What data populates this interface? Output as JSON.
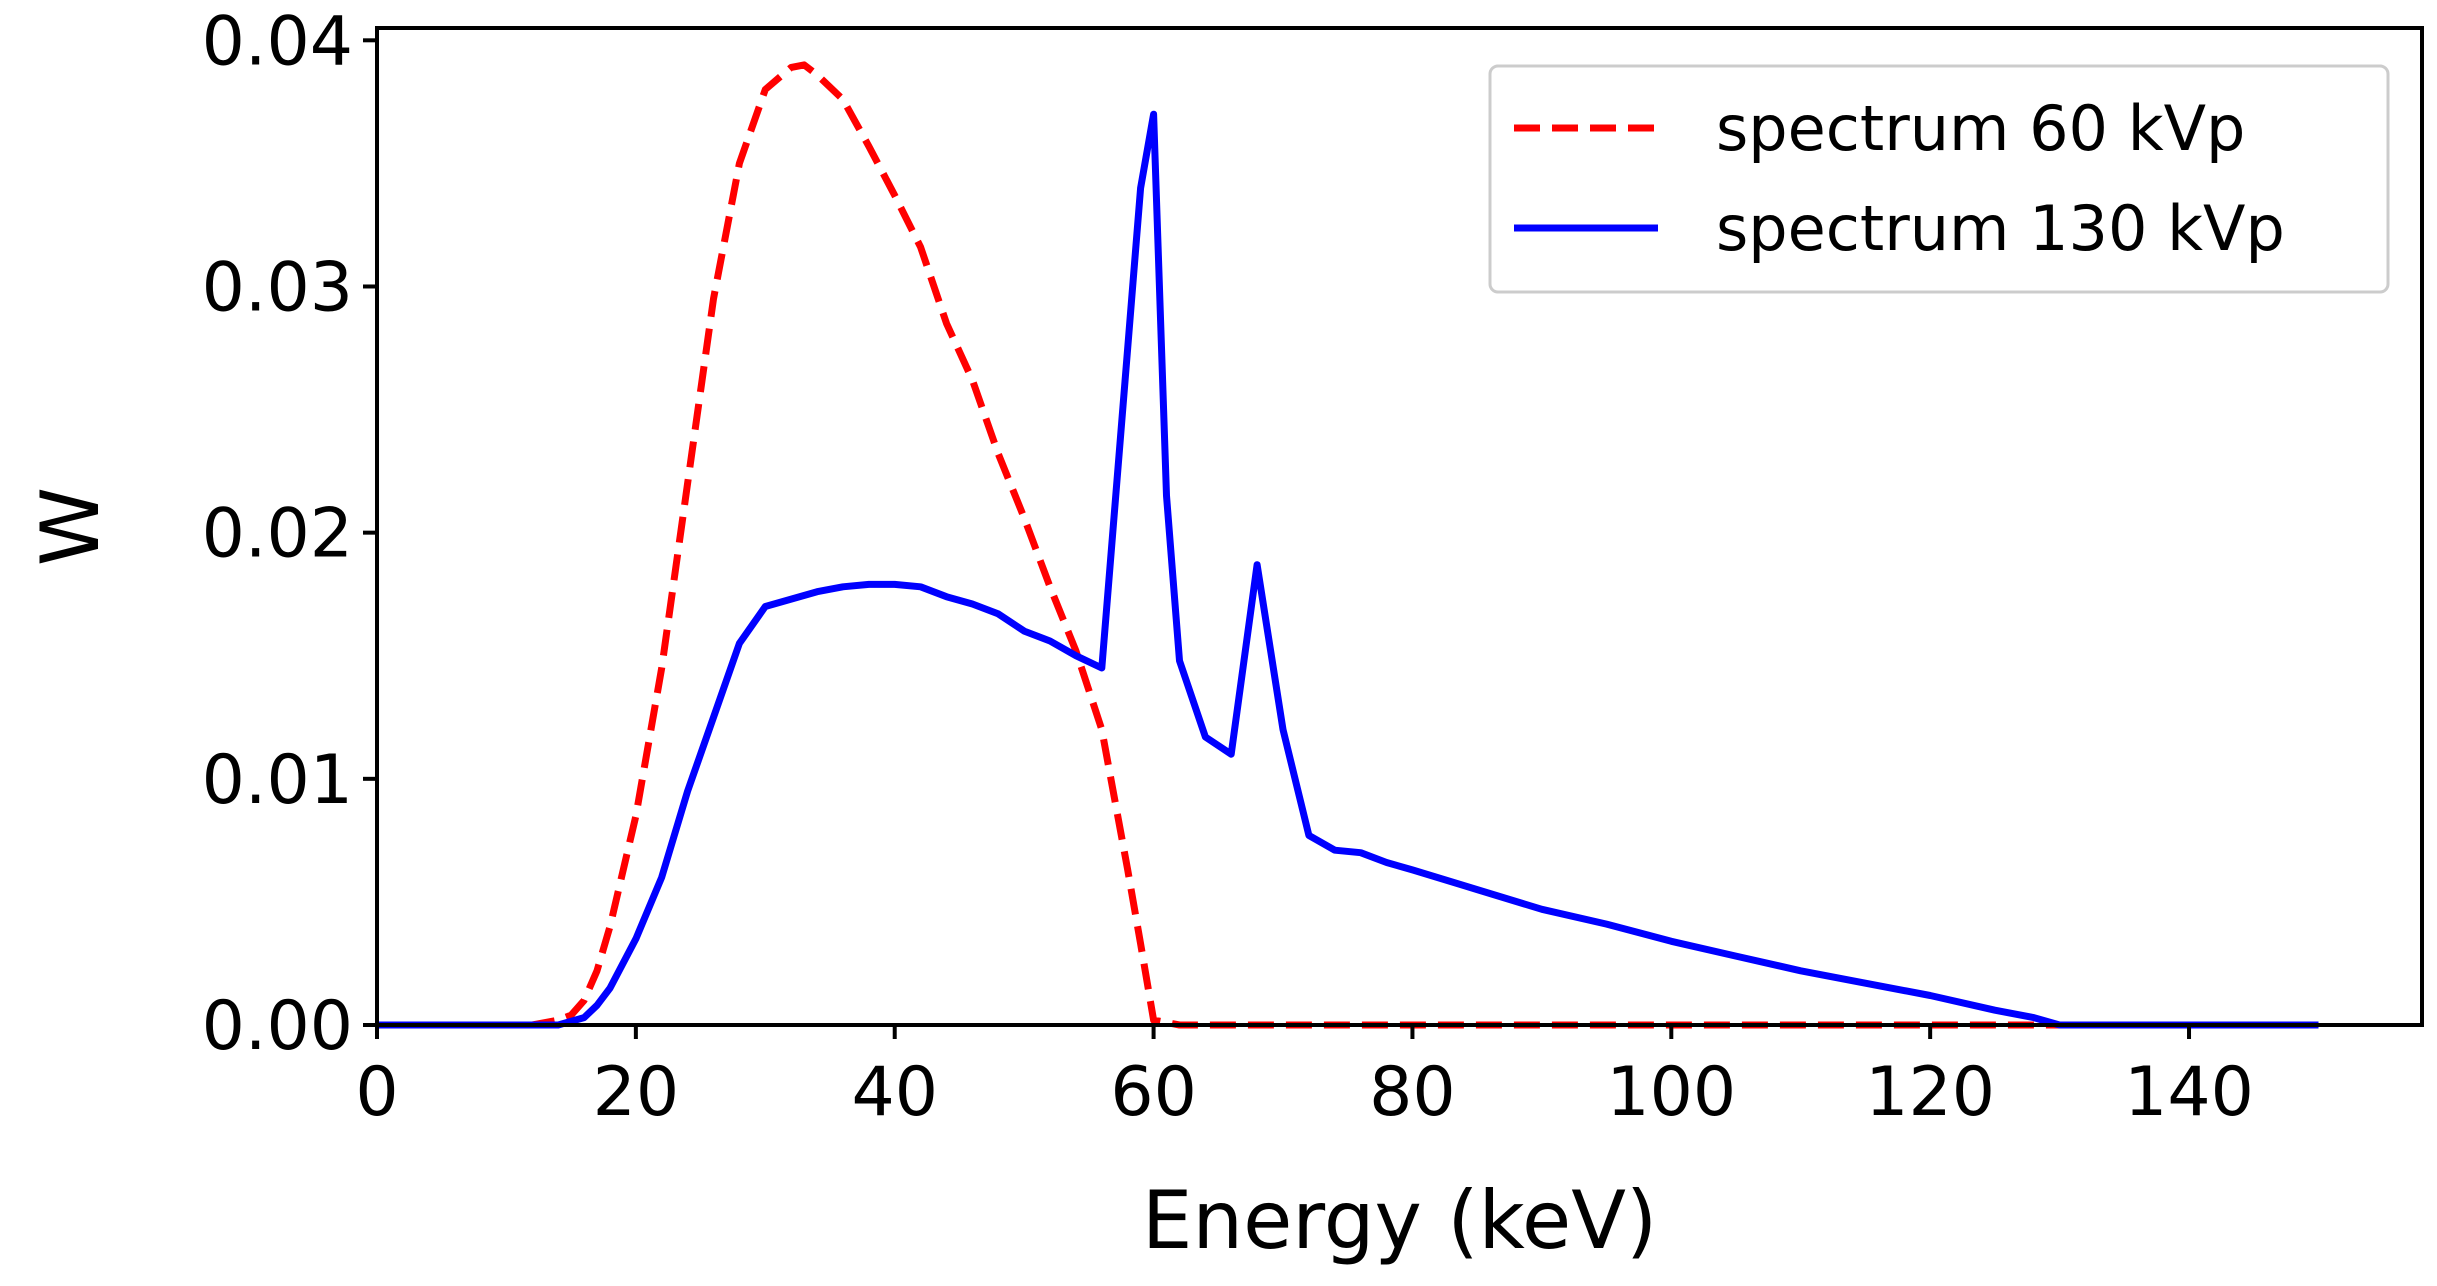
{
  "chart_data": {
    "type": "line",
    "title": "",
    "xlabel": "Energy (keV)",
    "ylabel": "W",
    "xlim": [
      0,
      158
    ],
    "ylim": [
      0,
      0.0405
    ],
    "xticks": [
      0,
      20,
      40,
      60,
      80,
      100,
      120,
      140
    ],
    "xtick_labels": [
      "0",
      "20",
      "40",
      "60",
      "80",
      "100",
      "120",
      "140"
    ],
    "yticks": [
      0,
      0.01,
      0.02,
      0.03,
      0.04
    ],
    "ytick_labels": [
      "0.00",
      "0.01",
      "0.02",
      "0.03",
      "0.04"
    ],
    "grid": false,
    "legend_position": "top-right",
    "series": [
      {
        "name": "spectrum 60 kVp",
        "color": "#ff0000",
        "style": "dashed",
        "x": [
          0,
          10,
          12,
          14,
          15,
          16,
          17,
          18,
          20,
          22,
          24,
          26,
          28,
          30,
          32,
          33,
          34,
          36,
          38,
          40,
          42,
          44,
          46,
          48,
          50,
          52,
          54,
          56,
          58,
          59,
          60,
          62,
          70,
          80,
          100,
          120,
          130,
          150
        ],
        "y": [
          0,
          0,
          0,
          0.0002,
          0.0004,
          0.001,
          0.0022,
          0.004,
          0.0085,
          0.0145,
          0.022,
          0.0295,
          0.035,
          0.038,
          0.0389,
          0.039,
          0.0386,
          0.0376,
          0.0357,
          0.0337,
          0.0316,
          0.0285,
          0.0262,
          0.0232,
          0.0206,
          0.0178,
          0.0152,
          0.012,
          0.0063,
          0.0033,
          0.0002,
          0,
          0,
          0,
          0,
          0,
          0,
          0
        ]
      },
      {
        "name": "spectrum 130 kVp",
        "color": "#0000ff",
        "style": "solid",
        "x": [
          0,
          10,
          14,
          16,
          17,
          18,
          20,
          22,
          24,
          26,
          28,
          30,
          32,
          34,
          36,
          38,
          40,
          42,
          44,
          46,
          48,
          50,
          52,
          54,
          56,
          58,
          59,
          60,
          61,
          62,
          64,
          66,
          68,
          70,
          72,
          74,
          76,
          78,
          80,
          85,
          90,
          95,
          100,
          105,
          110,
          115,
          120,
          125,
          128,
          130,
          140,
          150
        ],
        "y": [
          0,
          0,
          0,
          0.0003,
          0.0008,
          0.0015,
          0.0035,
          0.006,
          0.0095,
          0.0125,
          0.0155,
          0.017,
          0.0173,
          0.0176,
          0.0178,
          0.0179,
          0.0179,
          0.0178,
          0.0174,
          0.0171,
          0.0167,
          0.016,
          0.0156,
          0.015,
          0.0145,
          0.0275,
          0.034,
          0.037,
          0.0215,
          0.0148,
          0.0117,
          0.011,
          0.0187,
          0.012,
          0.0077,
          0.0071,
          0.007,
          0.0066,
          0.0063,
          0.0055,
          0.0047,
          0.0041,
          0.0034,
          0.0028,
          0.0022,
          0.0017,
          0.0012,
          0.0006,
          0.0003,
          0,
          0,
          0
        ]
      }
    ]
  }
}
